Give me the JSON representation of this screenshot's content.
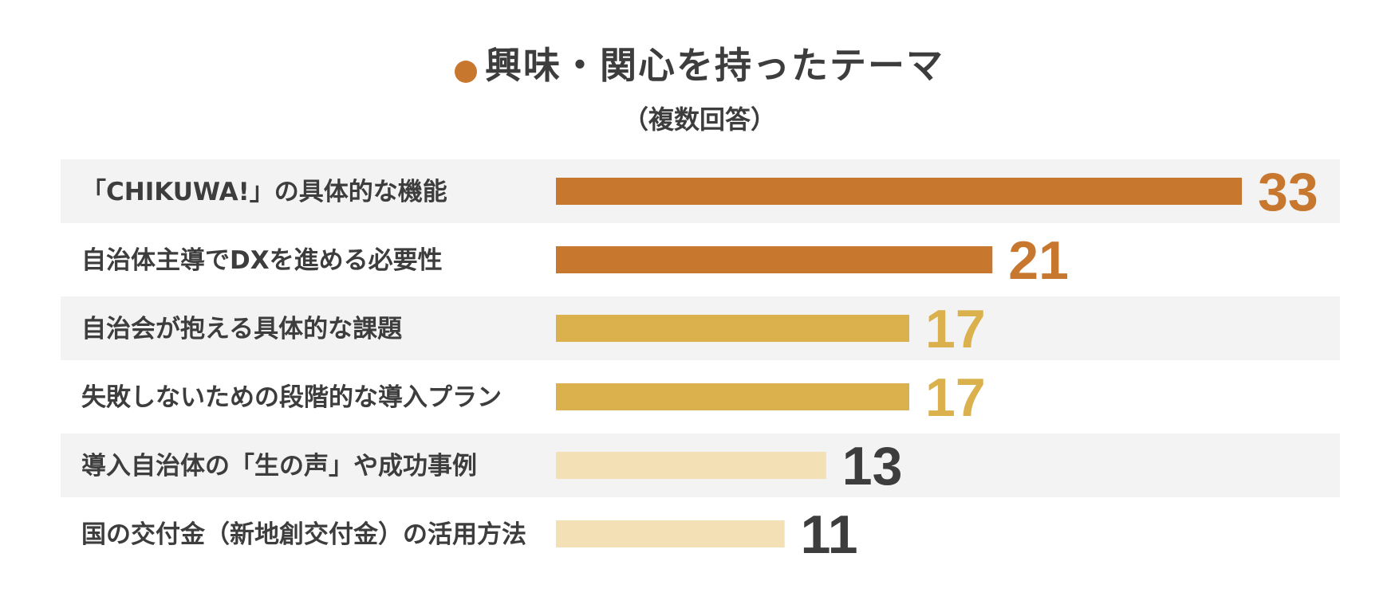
{
  "chart_data": {
    "type": "bar",
    "orientation": "horizontal",
    "title": "興味・関心を持ったテーマ",
    "subtitle": "（複数回答）",
    "categories": [
      "「CHIKUWA!」の具体的な機能",
      "自治体主導でDXを進める必要性",
      "自治会が抱える具体的な課題",
      "失敗しないための段階的な導入プラン",
      "導入自治体の「生の声」や成功事例",
      "国の交付金（新地創交付金）の活用方法"
    ],
    "values": [
      33,
      21,
      17,
      17,
      13,
      11
    ],
    "bar_colors": [
      "#c8782e",
      "#c8782e",
      "#dbb14e",
      "#dbb14e",
      "#f3e1b5",
      "#f3e1b5"
    ],
    "value_label_colors": [
      "#c8782e",
      "#c8782e",
      "#dbb14e",
      "#dbb14e",
      "#3d3d3d",
      "#3d3d3d"
    ],
    "stripe_color": "#f3f3f3",
    "title_dot_color": "#c8782e",
    "xlim": [
      0,
      33
    ],
    "grid": false,
    "legend": "none"
  }
}
